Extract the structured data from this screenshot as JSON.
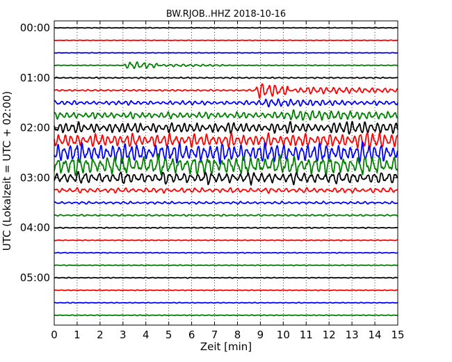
{
  "chart_data": {
    "type": "line",
    "title": "BW.RJOB..HHZ 2018-10-16",
    "xlabel": "Zeit  [min]",
    "ylabel": "UTC (Lokalzeit = UTC + 02:00)",
    "xlim": [
      0,
      15
    ],
    "xticks": [
      "0",
      "1",
      "2",
      "3",
      "4",
      "5",
      "6",
      "7",
      "8",
      "9",
      "10",
      "11",
      "12",
      "13",
      "14",
      "15"
    ],
    "yticks": [
      "00:00",
      "01:00",
      "02:00",
      "03:00",
      "04:00",
      "05:00"
    ],
    "grid": "vertical dotted",
    "trace_interval_minutes": 15,
    "trace_colors": [
      "#000000",
      "#ff0000",
      "#0000ff",
      "#008000"
    ],
    "traces": [
      {
        "start": "00:00",
        "color": "#000000",
        "amplitude": 0.08,
        "events": []
      },
      {
        "start": "00:15",
        "color": "#ff0000",
        "amplitude": 0.08,
        "events": []
      },
      {
        "start": "00:30",
        "color": "#0000ff",
        "amplitude": 0.08,
        "events": []
      },
      {
        "start": "00:45",
        "color": "#008000",
        "amplitude": 0.1,
        "events": [
          {
            "t0": 3.0,
            "t1": 4.5,
            "amp": 0.9
          },
          {
            "t0": 4.5,
            "t1": 7.5,
            "amp": 0.3
          }
        ]
      },
      {
        "start": "01:00",
        "color": "#000000",
        "amplitude": 0.15,
        "events": []
      },
      {
        "start": "01:15",
        "color": "#ff0000",
        "amplitude": 0.2,
        "events": [
          {
            "t0": 8.7,
            "t1": 10.2,
            "amp": 1.8
          },
          {
            "t0": 10.2,
            "t1": 15.0,
            "amp": 0.8
          }
        ]
      },
      {
        "start": "01:30",
        "color": "#0000ff",
        "amplitude": 0.5,
        "events": [
          {
            "t0": 8.5,
            "t1": 13.0,
            "amp": 0.9
          }
        ]
      },
      {
        "start": "01:45",
        "color": "#008000",
        "amplitude": 0.8,
        "events": [
          {
            "t0": 9.5,
            "t1": 15.0,
            "amp": 1.2
          }
        ]
      },
      {
        "start": "02:00",
        "color": "#000000",
        "amplitude": 1.3,
        "events": [
          {
            "t0": 12.0,
            "t1": 15.0,
            "amp": 1.6
          }
        ]
      },
      {
        "start": "02:15",
        "color": "#ff0000",
        "amplitude": 1.6,
        "events": [
          {
            "t0": 13.0,
            "t1": 15.0,
            "amp": 2.2
          }
        ]
      },
      {
        "start": "02:30",
        "color": "#0000ff",
        "amplitude": 2.3,
        "events": []
      },
      {
        "start": "02:45",
        "color": "#008000",
        "amplitude": 2.3,
        "events": []
      },
      {
        "start": "03:00",
        "color": "#000000",
        "amplitude": 1.4,
        "events": []
      },
      {
        "start": "03:15",
        "color": "#ff0000",
        "amplitude": 0.6,
        "events": []
      },
      {
        "start": "03:30",
        "color": "#0000ff",
        "amplitude": 0.3,
        "events": []
      },
      {
        "start": "03:45",
        "color": "#008000",
        "amplitude": 0.2,
        "events": []
      },
      {
        "start": "04:00",
        "color": "#000000",
        "amplitude": 0.12,
        "events": []
      },
      {
        "start": "04:15",
        "color": "#ff0000",
        "amplitude": 0.1,
        "events": []
      },
      {
        "start": "04:30",
        "color": "#0000ff",
        "amplitude": 0.1,
        "events": []
      },
      {
        "start": "04:45",
        "color": "#008000",
        "amplitude": 0.1,
        "events": []
      },
      {
        "start": "05:00",
        "color": "#000000",
        "amplitude": 0.1,
        "events": []
      },
      {
        "start": "05:15",
        "color": "#ff0000",
        "amplitude": 0.1,
        "events": []
      },
      {
        "start": "05:30",
        "color": "#0000ff",
        "amplitude": 0.1,
        "events": []
      },
      {
        "start": "05:45",
        "color": "#008000",
        "amplitude": 0.1,
        "events": []
      }
    ]
  }
}
